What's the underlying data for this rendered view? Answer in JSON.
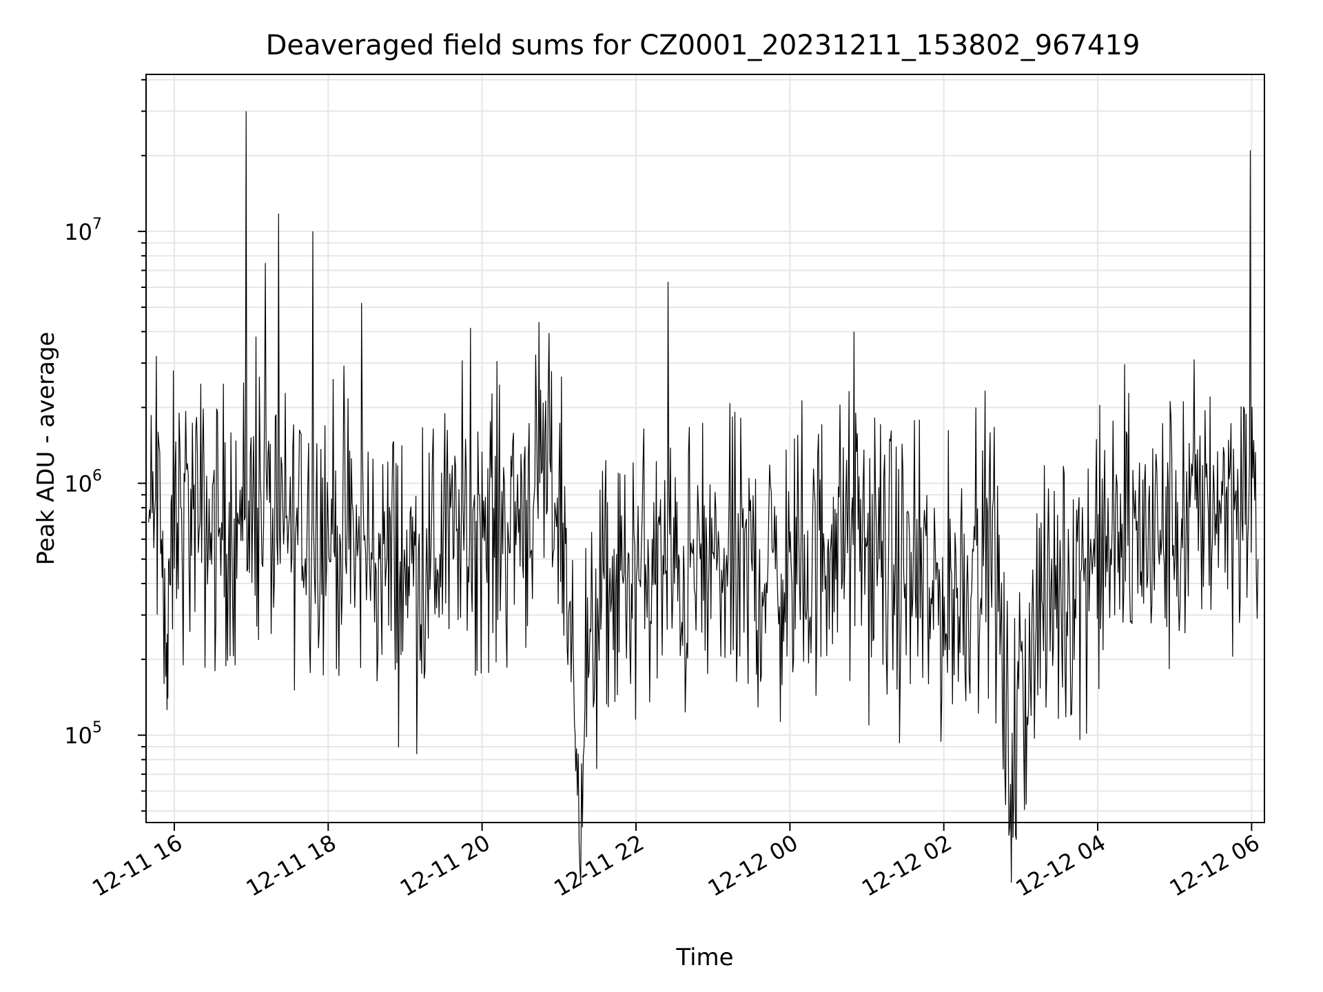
{
  "chart_data": {
    "type": "line",
    "title": "Deaveraged field sums for CZ0001_20231211_153802_967419",
    "xlabel": "Time",
    "ylabel": "Peak ADU - average",
    "yscale": "log",
    "grid": true,
    "legend": "none",
    "line_color": "#000000",
    "grid_color": "#e6e6e6",
    "xlim": [
      "2023-12-11 15:38",
      "2023-12-12 06:10"
    ],
    "ylim": [
      45000,
      42000000
    ],
    "x_tick_labels": [
      "12-11 16",
      "12-11 18",
      "12-11 20",
      "12-11 22",
      "12-12 00",
      "12-12 02",
      "12-12 04",
      "12-12 06"
    ],
    "x_tick_times": [
      "2023-12-11 16:00",
      "2023-12-11 18:00",
      "2023-12-11 20:00",
      "2023-12-11 22:00",
      "2023-12-12 00:00",
      "2023-12-12 02:00",
      "2023-12-12 04:00",
      "2023-12-12 06:00"
    ],
    "y_tick_labels": [
      {
        "base": "10",
        "exp": "5",
        "value": 100000
      },
      {
        "base": "10",
        "exp": "6",
        "value": 1000000
      },
      {
        "base": "10",
        "exp": "7",
        "value": 10000000
      }
    ],
    "series": [
      {
        "x": [
          "2023-12-11 15:40",
          "2023-12-11 15:46",
          "2023-12-11 15:50",
          "2023-12-11 15:53",
          "2023-12-11 15:55",
          "2023-12-11 15:58",
          "2023-12-11 16:05",
          "2023-12-11 16:20",
          "2023-12-11 16:35",
          "2023-12-11 16:50",
          "2023-12-11 16:56",
          "2023-12-11 17:05",
          "2023-12-11 17:11",
          "2023-12-11 17:20",
          "2023-12-11 17:35",
          "2023-12-11 17:48",
          "2023-12-11 18:00",
          "2023-12-11 18:20",
          "2023-12-11 18:26",
          "2023-12-11 18:40",
          "2023-12-11 19:00",
          "2023-12-11 19:20",
          "2023-12-11 19:40",
          "2023-12-11 19:58",
          "2023-12-11 20:20",
          "2023-12-11 20:45",
          "2023-12-11 21:00",
          "2023-12-11 21:10",
          "2023-12-11 21:13",
          "2023-12-11 21:30",
          "2023-12-11 21:50",
          "2023-12-11 22:10",
          "2023-12-11 22:25",
          "2023-12-11 22:30",
          "2023-12-11 22:50",
          "2023-12-11 23:10",
          "2023-12-11 23:30",
          "2023-12-11 23:50",
          "2023-12-12 00:10",
          "2023-12-12 00:30",
          "2023-12-12 00:50",
          "2023-12-12 01:10",
          "2023-12-12 01:30",
          "2023-12-12 01:50",
          "2023-12-12 02:10",
          "2023-12-12 02:25",
          "2023-12-12 02:40",
          "2023-12-12 02:52",
          "2023-12-12 03:10",
          "2023-12-12 03:30",
          "2023-12-12 03:50",
          "2023-12-12 04:10",
          "2023-12-12 04:30",
          "2023-12-12 04:50",
          "2023-12-12 05:10",
          "2023-12-12 05:25",
          "2023-12-12 05:40",
          "2023-12-12 05:59",
          "2023-12-12 06:05"
        ],
        "y": [
          700000,
          3200000,
          600000,
          250000,
          140000,
          900000,
          800000,
          700000,
          650000,
          700000,
          30000000,
          800000,
          7500000,
          600000,
          700000,
          10000000,
          700000,
          550000,
          5200000,
          500000,
          450000,
          500000,
          650000,
          900000,
          700000,
          1000000,
          1100000,
          250000,
          72000,
          350000,
          400000,
          450000,
          6300000,
          400000,
          500000,
          450000,
          500000,
          450000,
          400000,
          600000,
          4000000,
          500000,
          400000,
          350000,
          350000,
          2000000,
          500000,
          64000,
          300000,
          350000,
          500000,
          550000,
          650000,
          600000,
          700000,
          1200000,
          900000,
          21000000,
          500000
        ]
      }
    ]
  }
}
